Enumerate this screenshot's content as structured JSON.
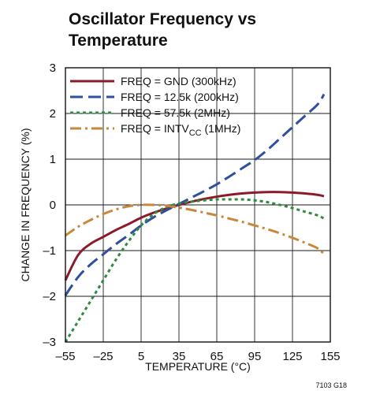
{
  "chart_data": {
    "type": "line",
    "title_lines": [
      "Oscillator Frequency vs",
      "Temperature"
    ],
    "xlabel": "TEMPERATURE (°C)",
    "ylabel": "CHANGE IN FREQUENCY (%)",
    "xlim": [
      -55,
      155
    ],
    "ylim": [
      -3,
      3
    ],
    "x_ticks": [
      -55,
      -25,
      5,
      35,
      65,
      95,
      125,
      155
    ],
    "x_tick_labels": [
      "–55",
      "–25",
      "5",
      "35",
      "65",
      "95",
      "125",
      "155"
    ],
    "y_ticks": [
      3,
      2,
      1,
      0,
      -1,
      -2,
      -3
    ],
    "y_tick_labels": [
      "3",
      "2",
      "1",
      "0",
      "–1",
      "–2",
      "–3"
    ],
    "grid": true,
    "legend_placement": "top-left",
    "figure_id": "7103 G18",
    "series": [
      {
        "name": "FREQ = GND (300kHz)",
        "legend_main": "FREQ = GND (300kHz)",
        "color": "#8b1a2b",
        "style": "solid",
        "x": [
          -55,
          -45,
          -35,
          -25,
          -15,
          -5,
          5,
          15,
          25,
          35,
          45,
          55,
          65,
          75,
          85,
          95,
          105,
          115,
          125,
          135,
          145,
          150
        ],
        "y": [
          -1.65,
          -1.1,
          -0.85,
          -0.7,
          -0.55,
          -0.42,
          -0.28,
          -0.17,
          -0.08,
          0.0,
          0.07,
          0.13,
          0.18,
          0.22,
          0.25,
          0.27,
          0.28,
          0.28,
          0.27,
          0.25,
          0.22,
          0.19
        ]
      },
      {
        "name": "FREQ = 12.5k (200kHz)",
        "legend_main": "FREQ = 12.5k (200kHz)",
        "color": "#2f4f9f",
        "style": "dashed",
        "x": [
          -55,
          -45,
          -35,
          -25,
          -15,
          -5,
          5,
          15,
          25,
          35,
          45,
          55,
          65,
          75,
          85,
          95,
          105,
          115,
          125,
          135,
          145,
          150
        ],
        "y": [
          -1.98,
          -1.58,
          -1.3,
          -1.08,
          -0.86,
          -0.66,
          -0.45,
          -0.27,
          -0.12,
          0.02,
          0.16,
          0.3,
          0.45,
          0.62,
          0.8,
          0.98,
          1.2,
          1.45,
          1.7,
          1.95,
          2.2,
          2.42
        ]
      },
      {
        "name": "FREQ = 57.5k (2MHz)",
        "legend_main": "FREQ = 57.5k (2MHz)",
        "color": "#2e8b3d",
        "style": "dotted",
        "x": [
          -55,
          -45,
          -35,
          -25,
          -15,
          -5,
          5,
          15,
          25,
          35,
          45,
          55,
          65,
          75,
          85,
          95,
          105,
          115,
          125,
          135,
          145,
          150
        ],
        "y": [
          -3.0,
          -2.55,
          -2.1,
          -1.65,
          -1.2,
          -0.8,
          -0.45,
          -0.2,
          -0.05,
          0.03,
          0.07,
          0.1,
          0.12,
          0.12,
          0.12,
          0.1,
          0.06,
          0.0,
          -0.07,
          -0.15,
          -0.23,
          -0.3
        ]
      },
      {
        "name": "FREQ = INTVCC (1MHz)",
        "legend_main": "FREQ = INTV",
        "legend_sub": "CC",
        "legend_tail": " (1MHz)",
        "color": "#c8873a",
        "style": "dashdot",
        "x": [
          -55,
          -45,
          -35,
          -25,
          -15,
          -5,
          5,
          15,
          25,
          35,
          45,
          55,
          65,
          75,
          85,
          95,
          105,
          115,
          125,
          135,
          145,
          150
        ],
        "y": [
          -0.67,
          -0.48,
          -0.33,
          -0.2,
          -0.1,
          -0.03,
          0.0,
          0.0,
          -0.02,
          -0.06,
          -0.11,
          -0.17,
          -0.23,
          -0.3,
          -0.37,
          -0.45,
          -0.53,
          -0.62,
          -0.72,
          -0.83,
          -0.95,
          -1.08
        ]
      }
    ]
  }
}
